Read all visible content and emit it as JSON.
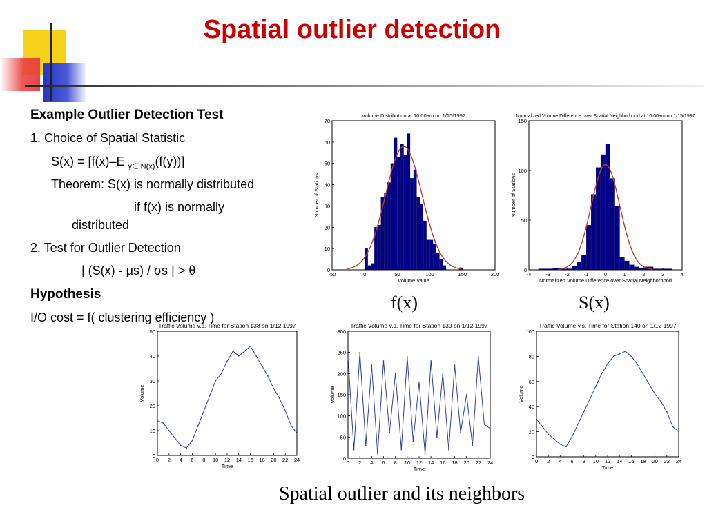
{
  "slide": {
    "title": "Spatial outlier detection",
    "lines": {
      "heading": "Example Outlier Detection Test",
      "item1": "1. Choice of Spatial Statistic",
      "formula_a": "S(x) = [f(x)–E ",
      "formula_sub": "y∈ N(x)",
      "formula_b": "(f(y))]",
      "theorem": "Theorem: S(x) is normally distributed",
      "if_line": "if f(x) is normally",
      "distributed": "distributed",
      "item2": "2. Test for Outlier Detection",
      "test": "| (S(x) - μs) / σs | >  θ",
      "hypothesis": "Hypothesis",
      "io": "I/O cost = f( clustering efficiency )"
    },
    "fx_label": "f(x)",
    "sx_label": "S(x)",
    "caption": "Spatial outlier and its neighbors"
  },
  "chart_data": [
    {
      "type": "bar",
      "title": "Volume Distribution at 10:00am on 1/15/1997",
      "xlabel": "Volume Value",
      "ylabel": "Number of Stations",
      "xlim": [
        -50,
        200
      ],
      "ylim": [
        0,
        70
      ],
      "xticks": [
        -50,
        0,
        50,
        100,
        150,
        200
      ],
      "yticks": [
        0,
        10,
        20,
        30,
        40,
        50,
        60,
        70
      ],
      "bin_width": 5,
      "bin_starts": [
        0,
        5,
        10,
        15,
        20,
        25,
        30,
        35,
        40,
        45,
        50,
        55,
        60,
        65,
        70,
        75,
        80,
        85,
        90,
        95,
        100,
        105,
        110,
        115,
        120,
        125,
        130,
        135,
        140,
        145,
        150
      ],
      "values": [
        10,
        2,
        3,
        20,
        21,
        34,
        36,
        41,
        50,
        62,
        53,
        59,
        54,
        64,
        43,
        47,
        34,
        31,
        23,
        14,
        14,
        12,
        8,
        5,
        2,
        0,
        0,
        0,
        0,
        1,
        0
      ],
      "fit_curve": {
        "mean": 60,
        "sd": 28,
        "peak": 58
      },
      "bar_color": "#00008b",
      "curve_color": "#c0392b"
    },
    {
      "type": "bar",
      "title": "Normalized Volume Difference over Spatial Neighborhood at 10:00am on 1/15/1997",
      "xlabel": "Normalized Volume Difference over Spatial Neighborhood",
      "ylabel": "Number of Stations",
      "xlim": [
        -4,
        4
      ],
      "ylim": [
        0,
        150
      ],
      "xticks": [
        -4,
        -3,
        -2,
        -1,
        0,
        1,
        2,
        3,
        4
      ],
      "yticks": [
        0,
        50,
        100,
        150
      ],
      "bin_width": 0.25,
      "bin_starts": [
        -3.5,
        -3.25,
        -3.0,
        -2.75,
        -2.5,
        -2.25,
        -2.0,
        -1.75,
        -1.5,
        -1.25,
        -1.0,
        -0.75,
        -0.5,
        -0.25,
        0,
        0.25,
        0.5,
        0.75,
        1.0,
        1.25,
        1.5,
        1.75,
        2.0,
        2.25,
        2.5,
        2.75,
        3.0,
        3.25
      ],
      "values": [
        1,
        1,
        1,
        2,
        2,
        1,
        1,
        4,
        8,
        15,
        45,
        76,
        103,
        116,
        127,
        92,
        64,
        13,
        9,
        5,
        3,
        2,
        3,
        3,
        1,
        1,
        1,
        1
      ],
      "fit_curve": {
        "mean": 0,
        "sd": 0.75,
        "peak": 106
      },
      "bar_color": "#00008b",
      "curve_color": "#c0392b"
    },
    {
      "type": "line",
      "title": "Traffic Volume v.s. Time for Station 138 on 1/12 1997",
      "xlabel": "Time",
      "ylabel": "Volume",
      "xlim": [
        0,
        24
      ],
      "ylim": [
        0,
        50
      ],
      "xticks": [
        0,
        2,
        4,
        6,
        8,
        10,
        12,
        14,
        16,
        18,
        20,
        22,
        24
      ],
      "yticks": [
        0,
        10,
        20,
        30,
        40,
        50
      ],
      "x": [
        0,
        1,
        2,
        3,
        4,
        5,
        6,
        7,
        8,
        9,
        10,
        11,
        12,
        13,
        14,
        15,
        16,
        17,
        18,
        19,
        20,
        21,
        22,
        23,
        24
      ],
      "values": [
        14,
        13,
        10,
        7,
        4,
        3,
        6,
        12,
        18,
        24,
        30,
        33,
        38,
        42,
        40,
        42,
        44,
        40,
        36,
        32,
        27,
        23,
        18,
        12,
        9
      ],
      "line_color": "#2a3f9e"
    },
    {
      "type": "line",
      "title": "Traffic Volume v.s. Time for Station 139 on 1/12 1997",
      "xlabel": "Time",
      "ylabel": "Volume",
      "xlim": [
        0,
        24
      ],
      "ylim": [
        0,
        300
      ],
      "xticks": [
        0,
        2,
        4,
        6,
        8,
        10,
        12,
        14,
        16,
        18,
        20,
        22,
        24
      ],
      "yticks": [
        0,
        50,
        100,
        150,
        200,
        250,
        300
      ],
      "x": [
        0,
        1,
        2,
        3,
        4,
        5,
        6,
        7,
        8,
        9,
        10,
        11,
        12,
        13,
        14,
        15,
        16,
        17,
        18,
        19,
        20,
        21,
        22,
        23,
        24
      ],
      "values": [
        240,
        20,
        250,
        30,
        220,
        10,
        230,
        60,
        200,
        20,
        240,
        40,
        180,
        10,
        230,
        50,
        200,
        20,
        220,
        60,
        150,
        30,
        240,
        80,
        70
      ],
      "line_color": "#2a3f9e"
    },
    {
      "type": "line",
      "title": "Traffic Volume v.s. Time for Station 140 on 1/12 1997",
      "xlabel": "Time",
      "ylabel": "Volume",
      "xlim": [
        0,
        24
      ],
      "ylim": [
        0,
        100
      ],
      "xticks": [
        0,
        2,
        4,
        6,
        8,
        10,
        12,
        14,
        16,
        18,
        20,
        22,
        24
      ],
      "yticks": [
        0,
        20,
        40,
        60,
        80,
        100
      ],
      "x": [
        0,
        1,
        2,
        3,
        4,
        5,
        6,
        7,
        8,
        9,
        10,
        11,
        12,
        13,
        14,
        15,
        16,
        17,
        18,
        19,
        20,
        21,
        22,
        23,
        24
      ],
      "values": [
        30,
        24,
        18,
        14,
        10,
        8,
        16,
        26,
        36,
        46,
        56,
        66,
        74,
        80,
        82,
        84,
        80,
        74,
        66,
        58,
        50,
        44,
        36,
        24,
        20
      ],
      "line_color": "#2a3f9e"
    }
  ]
}
